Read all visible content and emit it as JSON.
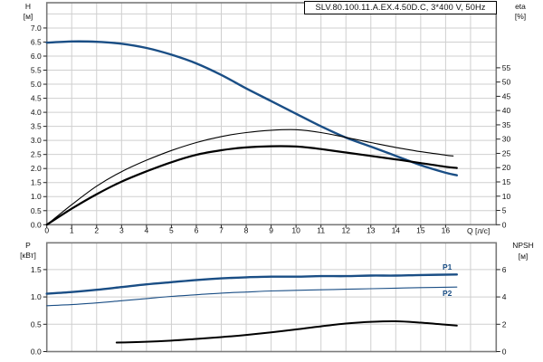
{
  "title": "SLV.80.100.11.A.EX.4.50D.C, 3*400 V, 50Hz",
  "colors": {
    "curve_blue": "#1a4e85",
    "curve_black": "#000000",
    "grid": "#cfcfcf",
    "frame": "#7a7a7a",
    "tick": "#222222",
    "text": "#111111"
  },
  "axis_headers": {
    "h": "H",
    "h_unit": "[м]",
    "eta": "eta",
    "eta_unit": "[%]",
    "q": "Q [л/с]",
    "p": "P",
    "p_unit": "[кВт]",
    "npsh": "NPSH",
    "npsh_unit": "[м]"
  },
  "curve_labels": {
    "p1": "P1",
    "p2": "P2"
  },
  "chart_data": [
    {
      "type": "line",
      "title": "SLV.80.100.11.A.EX.4.50D.C, 3*400 V, 50Hz",
      "x_axis": {
        "label": "Q [л/с]",
        "range": [
          0,
          18.03
        ],
        "tick_labels": [
          "0",
          "1",
          "2",
          "3",
          "4",
          "5",
          "6",
          "7",
          "8",
          "9",
          "10",
          "11",
          "12",
          "13",
          "14",
          "15",
          "16"
        ]
      },
      "y_left": {
        "label": "H [м]",
        "range": [
          0,
          7.9
        ],
        "grid_step": 0.5,
        "tick_labels": [
          "7.0",
          "6.5",
          "6.0",
          "5.5",
          "5.0",
          "4.5",
          "4.0",
          "3.5",
          "3.0",
          "2.5",
          "2.0",
          "1.5",
          "1.0",
          "0.5",
          "0.0"
        ]
      },
      "y_right": {
        "label": "eta [%]",
        "range": [
          0,
          77.8
        ],
        "tick_labels": [
          "55",
          "50",
          "45",
          "40",
          "35",
          "30",
          "25",
          "20",
          "15",
          "10",
          "5",
          "0"
        ]
      },
      "legend_position": "none",
      "grid": true,
      "series": [
        {
          "name": "head-curve",
          "axis": "left",
          "color": "blue",
          "width": 2.4,
          "points": [
            [
              0,
              6.48
            ],
            [
              1,
              6.52
            ],
            [
              2,
              6.51
            ],
            [
              3,
              6.44
            ],
            [
              4,
              6.29
            ],
            [
              5,
              6.05
            ],
            [
              6,
              5.74
            ],
            [
              7,
              5.33
            ],
            [
              8,
              4.85
            ],
            [
              9,
              4.4
            ],
            [
              10,
              3.95
            ],
            [
              11,
              3.5
            ],
            [
              12,
              3.1
            ],
            [
              13,
              2.78
            ],
            [
              14,
              2.45
            ],
            [
              15,
              2.12
            ],
            [
              16,
              1.85
            ],
            [
              16.45,
              1.76
            ]
          ]
        },
        {
          "name": "eta1-curve",
          "axis": "right",
          "color": "black",
          "width": 1.1,
          "points": [
            [
              0,
              0
            ],
            [
              1,
              7
            ],
            [
              2,
              13.5
            ],
            [
              3,
              18.6
            ],
            [
              4,
              22.6
            ],
            [
              5,
              26
            ],
            [
              6,
              28.8
            ],
            [
              7,
              30.9
            ],
            [
              8,
              32.3
            ],
            [
              9,
              33.1
            ],
            [
              10,
              33.3
            ],
            [
              11,
              32.3
            ],
            [
              12,
              30.6
            ],
            [
              13,
              28.8
            ],
            [
              14,
              27.1
            ],
            [
              15,
              25.6
            ],
            [
              16,
              24.4
            ],
            [
              16.3,
              24.1
            ]
          ]
        },
        {
          "name": "eta2-curve",
          "axis": "right",
          "color": "black",
          "width": 2.2,
          "points": [
            [
              0,
              0
            ],
            [
              1,
              5.6
            ],
            [
              2,
              10.7
            ],
            [
              3,
              15.1
            ],
            [
              4,
              18.7
            ],
            [
              5,
              21.9
            ],
            [
              6,
              24.5
            ],
            [
              7,
              26.1
            ],
            [
              8,
              27.1
            ],
            [
              9,
              27.5
            ],
            [
              10,
              27.4
            ],
            [
              11,
              26.5
            ],
            [
              12,
              25.3
            ],
            [
              13,
              24.1
            ],
            [
              14,
              22.9
            ],
            [
              15,
              21.6
            ],
            [
              16,
              20.3
            ],
            [
              16.45,
              19.9
            ]
          ]
        }
      ]
    },
    {
      "type": "line",
      "x_axis": {
        "label": "",
        "range": [
          0,
          18.03
        ],
        "tick_labels": []
      },
      "y_left": {
        "label": "P [кВт]",
        "range": [
          0,
          1.99
        ],
        "grid_step": 0.5,
        "tick_labels": [
          "1.5",
          "1.0",
          "0.5",
          "0.0"
        ]
      },
      "y_right": {
        "label": "NPSH [м]",
        "range": [
          0,
          7.96
        ],
        "tick_labels": [
          "6",
          "4",
          "2",
          "0"
        ]
      },
      "legend_position": "inline-right",
      "grid": true,
      "series": [
        {
          "name": "p1-curve",
          "label": "P1",
          "axis": "left",
          "color": "blue",
          "width": 2.4,
          "points": [
            [
              0,
              1.06
            ],
            [
              1,
              1.09
            ],
            [
              2,
              1.13
            ],
            [
              3,
              1.18
            ],
            [
              4,
              1.23
            ],
            [
              5,
              1.27
            ],
            [
              6,
              1.31
            ],
            [
              7,
              1.34
            ],
            [
              8,
              1.36
            ],
            [
              9,
              1.37
            ],
            [
              10,
              1.37
            ],
            [
              11,
              1.38
            ],
            [
              12,
              1.38
            ],
            [
              13,
              1.39
            ],
            [
              14,
              1.39
            ],
            [
              15,
              1.4
            ],
            [
              16.45,
              1.41
            ]
          ]
        },
        {
          "name": "p2-curve",
          "label": "P2",
          "axis": "left",
          "color": "blue",
          "width": 1.1,
          "points": [
            [
              0,
              0.84
            ],
            [
              1,
              0.86
            ],
            [
              2,
              0.89
            ],
            [
              3,
              0.93
            ],
            [
              4,
              0.97
            ],
            [
              5,
              1.01
            ],
            [
              6,
              1.04
            ],
            [
              7,
              1.07
            ],
            [
              8,
              1.09
            ],
            [
              9,
              1.11
            ],
            [
              10,
              1.12
            ],
            [
              11,
              1.13
            ],
            [
              12,
              1.14
            ],
            [
              13,
              1.15
            ],
            [
              14,
              1.16
            ],
            [
              15,
              1.17
            ],
            [
              16.45,
              1.18
            ]
          ]
        },
        {
          "name": "npsh-curve",
          "axis": "right",
          "color": "black",
          "width": 2.0,
          "points": [
            [
              2.8,
              0.66
            ],
            [
              4,
              0.72
            ],
            [
              5,
              0.8
            ],
            [
              6,
              0.93
            ],
            [
              7,
              1.06
            ],
            [
              8,
              1.22
            ],
            [
              9,
              1.41
            ],
            [
              10,
              1.62
            ],
            [
              11,
              1.85
            ],
            [
              12,
              2.05
            ],
            [
              13,
              2.18
            ],
            [
              14,
              2.22
            ],
            [
              15,
              2.12
            ],
            [
              16,
              1.97
            ],
            [
              16.45,
              1.9
            ]
          ]
        }
      ]
    }
  ]
}
